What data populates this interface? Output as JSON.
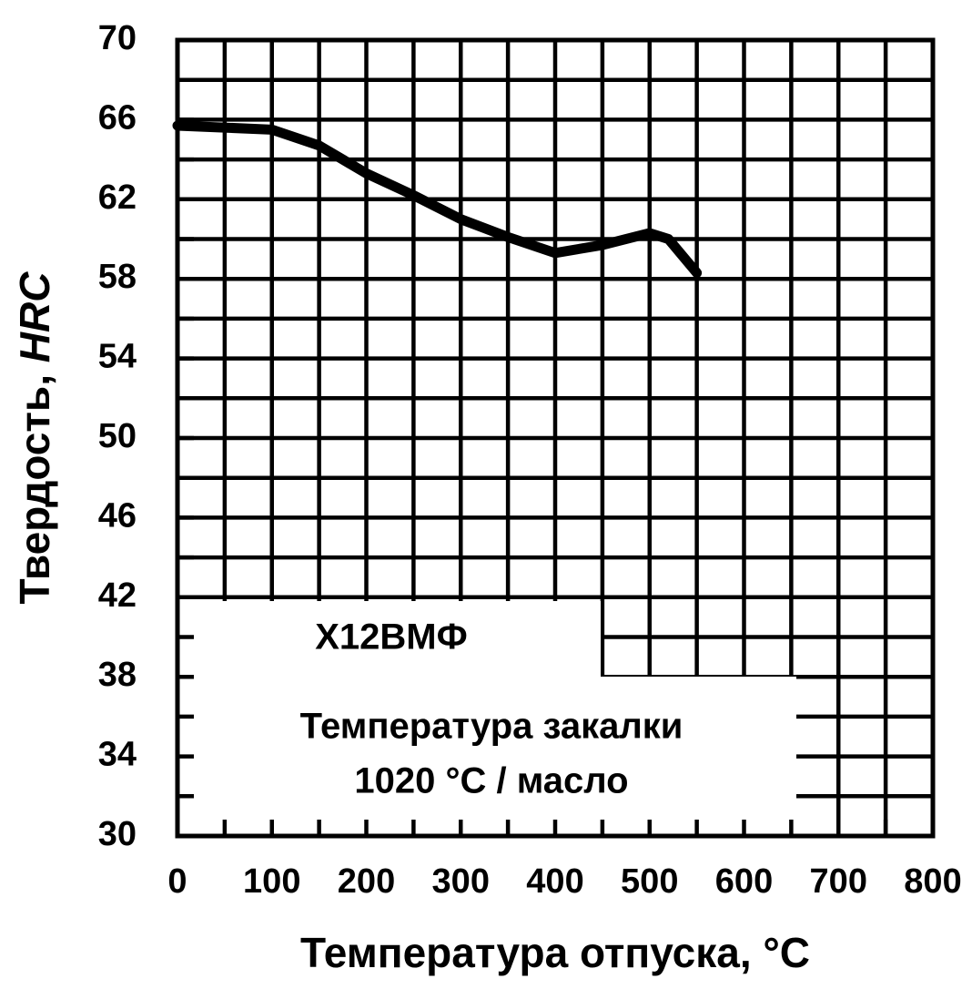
{
  "chart_data": {
    "type": "line",
    "xlabel": "Температура отпуска, °C",
    "ylabel": "Твердость,",
    "ylabel_unit": "HRC",
    "annotations": [
      "Х12ВМФ",
      "Температура закалки",
      "1020 °C / масло"
    ],
    "x": [
      0,
      100,
      150,
      200,
      250,
      300,
      350,
      400,
      450,
      500,
      520,
      550
    ],
    "series": [
      {
        "color": "#000000",
        "values": [
          65.7,
          65.5,
          64.7,
          63.3,
          62.2,
          61.0,
          60.1,
          59.3,
          59.7,
          60.3,
          60.0,
          58.3
        ]
      }
    ],
    "xlim": [
      0,
      800
    ],
    "xticks": [
      0,
      100,
      200,
      300,
      400,
      500,
      600,
      700,
      800
    ],
    "ylim": [
      30,
      70
    ],
    "yticks": [
      30,
      34,
      38,
      42,
      46,
      50,
      54,
      58,
      62,
      66,
      70
    ],
    "grid": true
  }
}
